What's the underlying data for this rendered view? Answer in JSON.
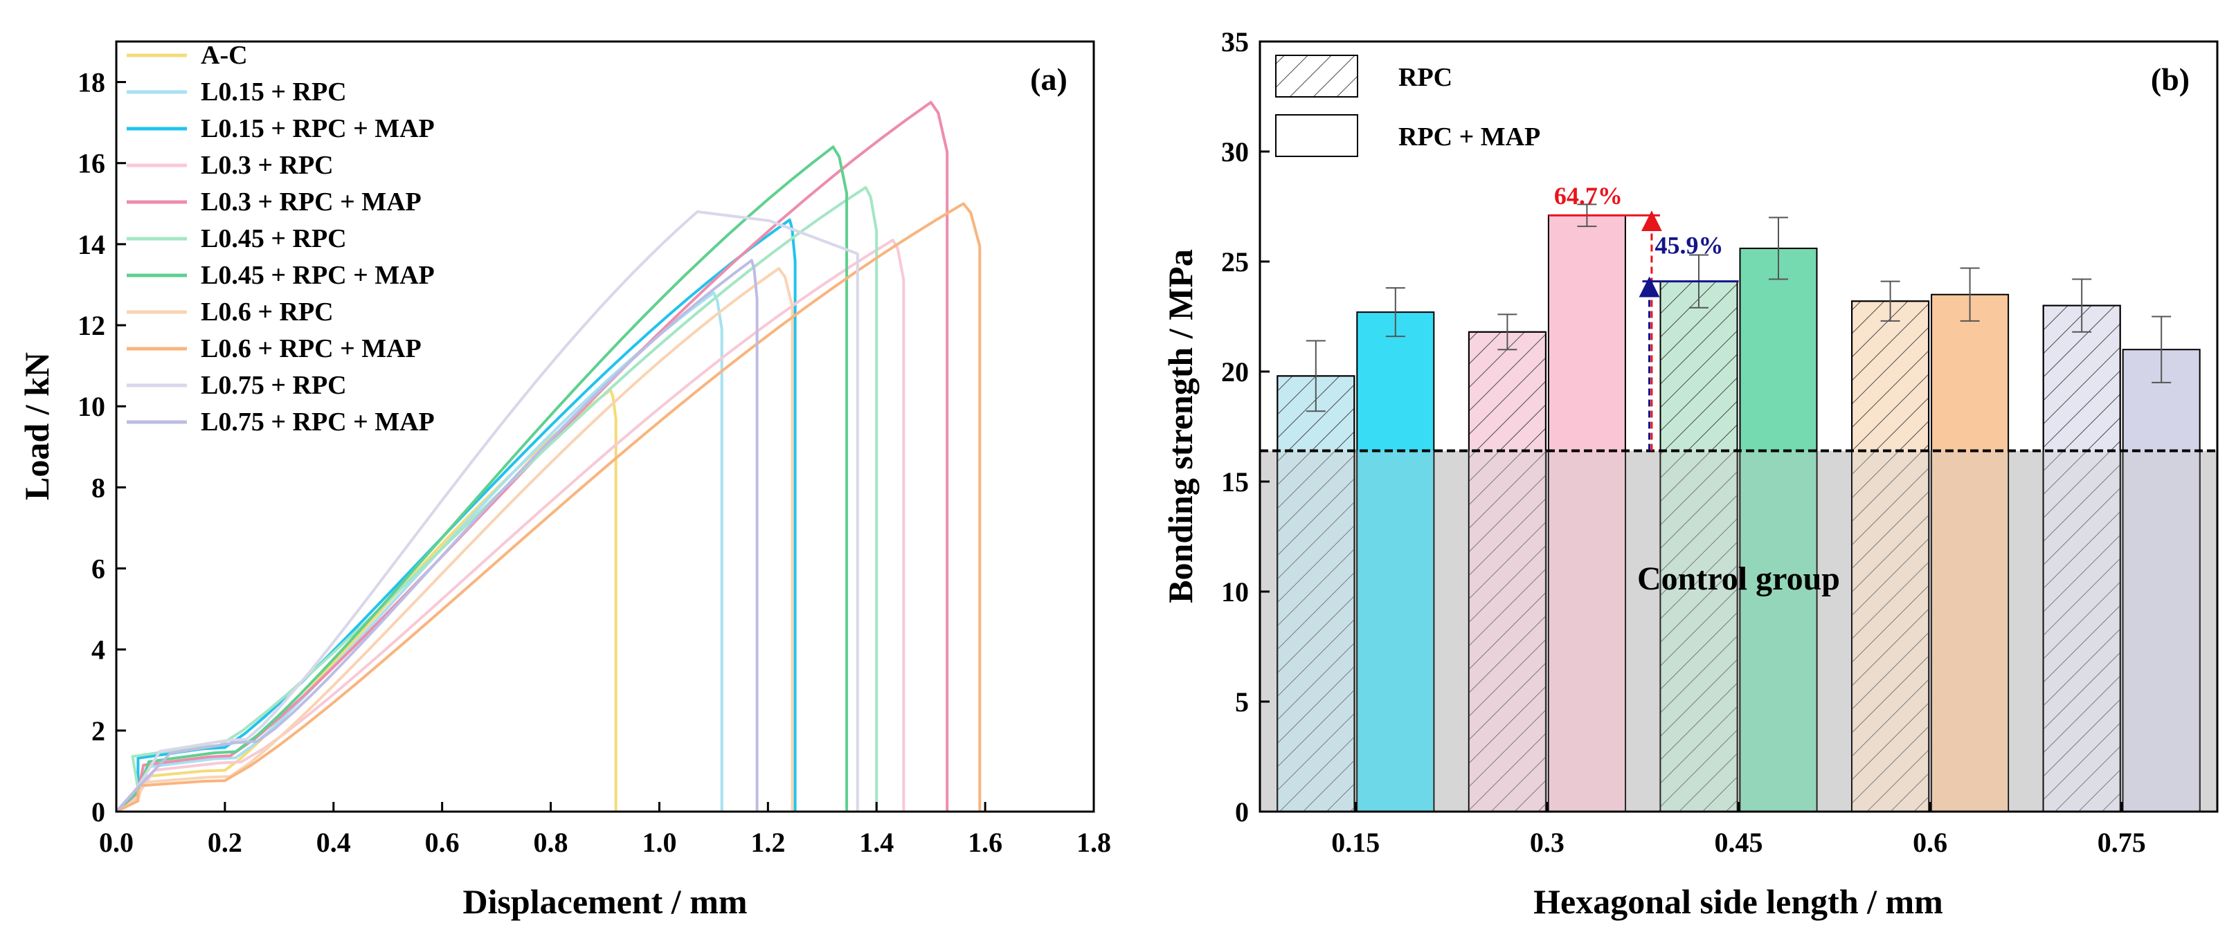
{
  "chart_data": [
    {
      "type": "line",
      "panel_label": "(a)",
      "xlabel": "Displacement / mm",
      "ylabel": "Load / kN",
      "xlim": [
        0.0,
        1.8
      ],
      "ylim": [
        0,
        19
      ],
      "xticks": [
        "0.0",
        "0.2",
        "0.4",
        "0.6",
        "0.8",
        "1.0",
        "1.2",
        "1.4",
        "1.6",
        "1.8"
      ],
      "yticks": [
        "0",
        "2",
        "4",
        "6",
        "8",
        "10",
        "12",
        "14",
        "16",
        "18"
      ],
      "legend_position": "top-left",
      "series": [
        {
          "name": "A-C",
          "color": "#f3dc78",
          "peak_x": 0.91,
          "peak_y": 10.4,
          "knee_x": 0.16,
          "knee_y": 1.0,
          "end_x": 0.92
        },
        {
          "name": "L0.15 + RPC",
          "color": "#a6e1f1",
          "peak_x": 1.1,
          "peak_y": 12.8,
          "knee_x": 0.18,
          "knee_y": 1.3,
          "end_x": 1.115
        },
        {
          "name": "L0.15 + RPC + MAP",
          "color": "#22c3ec",
          "peak_x": 1.24,
          "peak_y": 14.6,
          "knee_x": 0.16,
          "knee_y": 1.55,
          "end_x": 1.25
        },
        {
          "name": "L0.3 + RPC",
          "color": "#f8c9d6",
          "peak_x": 1.43,
          "peak_y": 14.1,
          "knee_x": 0.19,
          "knee_y": 1.2,
          "end_x": 1.45
        },
        {
          "name": "L0.3 + RPC + MAP",
          "color": "#ee8cac",
          "peak_x": 1.5,
          "peak_y": 17.5,
          "knee_x": 0.17,
          "knee_y": 1.35,
          "end_x": 1.53
        },
        {
          "name": "L0.45 + RPC",
          "color": "#a4e6c4",
          "peak_x": 1.38,
          "peak_y": 15.4,
          "knee_x": 0.15,
          "knee_y": 1.6,
          "end_x": 1.4
        },
        {
          "name": "L0.45 + RPC + MAP",
          "color": "#5fd08f",
          "peak_x": 1.32,
          "peak_y": 16.4,
          "knee_x": 0.18,
          "knee_y": 1.45,
          "end_x": 1.345
        },
        {
          "name": "L0.6 + RPC",
          "color": "#f9d4b3",
          "peak_x": 1.22,
          "peak_y": 13.4,
          "knee_x": 0.17,
          "knee_y": 0.85,
          "end_x": 1.245
        },
        {
          "name": "L0.6 + RPC + MAP",
          "color": "#f8b57e",
          "peak_x": 1.56,
          "peak_y": 15.0,
          "knee_x": 0.16,
          "knee_y": 0.75,
          "end_x": 1.59
        },
        {
          "name": "L0.75 + RPC",
          "color": "#d9d7ea",
          "peak_x": 1.07,
          "peak_y": 14.8,
          "knee_x": 0.2,
          "knee_y": 1.75,
          "end_x": 1.365
        },
        {
          "name": "L0.75 + RPC + MAP",
          "color": "#bcbde3",
          "peak_x": 1.17,
          "peak_y": 13.6,
          "knee_x": 0.22,
          "knee_y": 1.7,
          "end_x": 1.18
        }
      ]
    },
    {
      "type": "bar",
      "panel_label": "(b)",
      "xlabel": "Hexagonal side length / mm",
      "ylabel": "Bonding strength / MPa",
      "ylim": [
        0,
        35
      ],
      "yticks": [
        "0",
        "5",
        "10",
        "15",
        "20",
        "25",
        "30",
        "35"
      ],
      "categories": [
        "0.15",
        "0.3",
        "0.45",
        "0.6",
        "0.75"
      ],
      "legend_position": "top-left",
      "series": [
        {
          "name": "RPC",
          "pattern": "hatched",
          "values": [
            19.8,
            21.8,
            24.1,
            23.2,
            23.0
          ],
          "errors": [
            1.6,
            0.8,
            1.2,
            0.9,
            1.2
          ]
        },
        {
          "name": "RPC + MAP",
          "pattern": "solid",
          "values": [
            22.7,
            27.1,
            25.6,
            23.5,
            21.0
          ],
          "errors": [
            1.1,
            0.5,
            1.4,
            1.2,
            1.5
          ]
        }
      ],
      "colors": {
        "rpc": [
          "#bfe7f0",
          "#f6cfdc",
          "#bfe6d0",
          "#fae0c8",
          "#e2e2ef"
        ],
        "map": [
          "#22d9f4",
          "#f9c0d2",
          "#66d6a6",
          "#f9c292",
          "#cfcfe6"
        ],
        "control_fill": "#d6d6d6",
        "red": "#e8141c",
        "navy": "#14148c"
      },
      "control_group": {
        "label": "Control group",
        "value": 16.4
      },
      "annotations": [
        {
          "text": "64.7%",
          "category": "0.3",
          "color": "red"
        },
        {
          "text": "45.9%",
          "category": "0.45",
          "color": "navy"
        }
      ]
    }
  ]
}
